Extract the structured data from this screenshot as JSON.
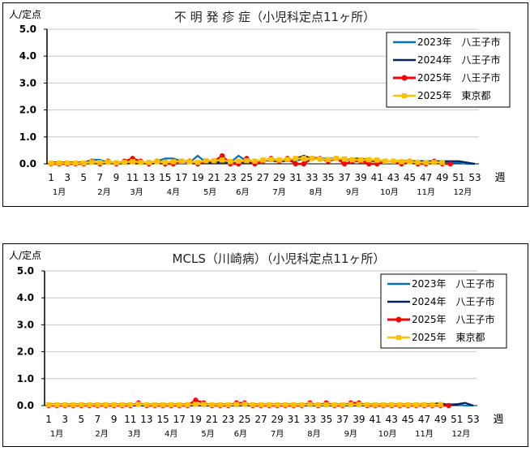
{
  "chart_data": [
    {
      "type": "line",
      "title": "不 明 発 疹 症（小児科定点11ヶ所）",
      "ylabel": "人/定点",
      "xlabel": "週",
      "ylim": [
        0,
        5.0
      ],
      "yticks": [
        "0.0",
        "1.0",
        "2.0",
        "3.0",
        "4.0",
        "5.0"
      ],
      "grid": true,
      "legend_position": "upper-right",
      "x_tick_labels": [
        "1",
        "3",
        "5",
        "7",
        "9",
        "11",
        "13",
        "15",
        "17",
        "19",
        "21",
        "23",
        "25",
        "27",
        "29",
        "31",
        "33",
        "35",
        "37",
        "39",
        "41",
        "43",
        "45",
        "47",
        "49",
        "51",
        "53"
      ],
      "month_labels": [
        {
          "label": "1月",
          "week": 2
        },
        {
          "label": "2月",
          "week": 7.5
        },
        {
          "label": "3月",
          "week": 11.5
        },
        {
          "label": "4月",
          "week": 16
        },
        {
          "label": "5月",
          "week": 20.5
        },
        {
          "label": "6月",
          "week": 24.5
        },
        {
          "label": "7月",
          "week": 29
        },
        {
          "label": "8月",
          "week": 33.5
        },
        {
          "label": "9月",
          "week": 38
        },
        {
          "label": "10月",
          "week": 42.5
        },
        {
          "label": "11月",
          "week": 47
        },
        {
          "label": "12月",
          "week": 51.5
        }
      ],
      "series": [
        {
          "name": "2023年　八王子市",
          "color": "#0070C0",
          "marker": "none",
          "width": 2.2,
          "values": [
            0.05,
            0.05,
            0.05,
            0.05,
            0.05,
            0.15,
            0.15,
            0.05,
            0.05,
            0.05,
            0.05,
            0.05,
            0.05,
            0.1,
            0.2,
            0.2,
            0.1,
            0.05,
            0.3,
            0.05,
            0.05,
            0.1,
            0.05,
            0.3,
            0.1,
            0.1,
            0.1,
            0.15,
            0.15,
            0.1,
            0.1,
            0.2,
            0.25,
            0.2,
            0.2,
            0.2,
            0.15,
            0.2,
            0.2,
            0.15,
            0.15,
            0.1,
            0.1,
            0.1,
            0.1,
            0.1,
            0.1,
            0.05,
            0.05,
            0.05,
            0.05,
            0.0,
            0.0
          ]
        },
        {
          "name": "2024年　八王子市",
          "color": "#002060",
          "marker": "none",
          "width": 2.2,
          "values": [
            0.05,
            0.05,
            0.05,
            0.05,
            0.05,
            0.05,
            0.05,
            0.05,
            0.05,
            0.05,
            0.05,
            0.05,
            0.05,
            0.05,
            0.05,
            0.05,
            0.1,
            0.05,
            0.05,
            0.05,
            0.05,
            0.05,
            0.05,
            0.05,
            0.05,
            0.05,
            0.15,
            0.1,
            0.1,
            0.1,
            0.2,
            0.3,
            0.2,
            0.2,
            0.15,
            0.15,
            0.15,
            0.15,
            0.15,
            0.1,
            0.1,
            0.1,
            0.1,
            0.1,
            0.1,
            0.1,
            0.1,
            0.1,
            0.1,
            0.1,
            0.1,
            0.05,
            0.0
          ]
        },
        {
          "name": "2025年　八王子市",
          "color": "#FF0000",
          "marker": "circle",
          "width": 2.5,
          "values": [
            0.0,
            0.0,
            0.0,
            0.0,
            0.0,
            0.1,
            0.0,
            0.1,
            0.0,
            0.1,
            0.2,
            0.1,
            0.0,
            0.1,
            0.0,
            0.0,
            0.1,
            0.1,
            0.0,
            0.1,
            0.1,
            0.3,
            0.0,
            0.0,
            0.2,
            0.0,
            0.1,
            0.2,
            0.1,
            0.2,
            0.0,
            0.0,
            0.2,
            0.2,
            0.1,
            0.2,
            0.0,
            0.1,
            0.1,
            0.0,
            0.0,
            0.1,
            0.1,
            0.0,
            0.1,
            0.0,
            0.0,
            0.1,
            0.0,
            0.0
          ]
        },
        {
          "name": "2025年　東京都",
          "color": "#FFC000",
          "marker": "square",
          "width": 2.5,
          "values": [
            0.02,
            0.03,
            0.03,
            0.03,
            0.03,
            0.07,
            0.05,
            0.07,
            0.04,
            0.06,
            0.08,
            0.06,
            0.05,
            0.08,
            0.06,
            0.08,
            0.1,
            0.08,
            0.06,
            0.12,
            0.12,
            0.14,
            0.08,
            0.1,
            0.12,
            0.1,
            0.14,
            0.16,
            0.14,
            0.16,
            0.2,
            0.2,
            0.2,
            0.18,
            0.16,
            0.2,
            0.18,
            0.15,
            0.14,
            0.15,
            0.14,
            0.1,
            0.1,
            0.08,
            0.08,
            0.06,
            0.05,
            0.06,
            0.05
          ]
        }
      ]
    },
    {
      "type": "line",
      "title": "MCLS（川崎病）（小児科定点11ヶ所）",
      "ylabel": "人/定点",
      "xlabel": "週",
      "ylim": [
        0,
        5.0
      ],
      "yticks": [
        "0.0",
        "1.0",
        "2.0",
        "3.0",
        "4.0",
        "5.0"
      ],
      "grid": true,
      "legend_position": "upper-right",
      "x_tick_labels": [
        "1",
        "3",
        "5",
        "7",
        "9",
        "11",
        "13",
        "15",
        "17",
        "19",
        "21",
        "23",
        "25",
        "27",
        "29",
        "31",
        "33",
        "35",
        "37",
        "39",
        "41",
        "43",
        "45",
        "47",
        "49",
        "51",
        "53"
      ],
      "month_labels": [
        {
          "label": "1月",
          "week": 2
        },
        {
          "label": "2月",
          "week": 7.5
        },
        {
          "label": "3月",
          "week": 11.5
        },
        {
          "label": "4月",
          "week": 16
        },
        {
          "label": "5月",
          "week": 20.5
        },
        {
          "label": "6月",
          "week": 24.5
        },
        {
          "label": "7月",
          "week": 29
        },
        {
          "label": "8月",
          "week": 33.5
        },
        {
          "label": "9月",
          "week": 38
        },
        {
          "label": "10月",
          "week": 42.5
        },
        {
          "label": "11月",
          "week": 47
        },
        {
          "label": "12月",
          "week": 51.5
        }
      ],
      "series": [
        {
          "name": "2023年　八王子市",
          "color": "#0070C0",
          "marker": "none",
          "width": 2.2,
          "values": [
            0.05,
            0.05,
            0.05,
            0.05,
            0.05,
            0.05,
            0.05,
            0.05,
            0.05,
            0.05,
            0.05,
            0.05,
            0.05,
            0.05,
            0.05,
            0.05,
            0.05,
            0.05,
            0.05,
            0.05,
            0.05,
            0.05,
            0.05,
            0.05,
            0.05,
            0.05,
            0.05,
            0.05,
            0.05,
            0.05,
            0.05,
            0.05,
            0.05,
            0.05,
            0.05,
            0.05,
            0.05,
            0.05,
            0.05,
            0.05,
            0.05,
            0.05,
            0.05,
            0.05,
            0.05,
            0.05,
            0.05,
            0.05,
            0.05,
            0.05,
            0.05,
            0.0,
            0.0
          ]
        },
        {
          "name": "2024年　八王子市",
          "color": "#002060",
          "marker": "none",
          "width": 2.2,
          "values": [
            0.0,
            0.0,
            0.0,
            0.0,
            0.05,
            0.0,
            0.0,
            0.0,
            0.0,
            0.0,
            0.0,
            0.0,
            0.0,
            0.0,
            0.0,
            0.0,
            0.0,
            0.0,
            0.0,
            0.0,
            0.0,
            0.0,
            0.0,
            0.0,
            0.0,
            0.0,
            0.0,
            0.0,
            0.0,
            0.0,
            0.0,
            0.0,
            0.0,
            0.0,
            0.0,
            0.0,
            0.0,
            0.0,
            0.0,
            0.0,
            0.0,
            0.0,
            0.0,
            0.0,
            0.0,
            0.0,
            0.05,
            0.05,
            0.1,
            0.0,
            0.05,
            0.1,
            0.0
          ]
        },
        {
          "name": "2025年　八王子市",
          "color": "#FF0000",
          "marker": "circle",
          "width": 2.5,
          "values": [
            0.0,
            0.0,
            0.0,
            0.0,
            0.0,
            0.0,
            0.0,
            0.0,
            0.0,
            0.0,
            0.0,
            0.1,
            0.0,
            0.0,
            0.0,
            0.0,
            0.0,
            0.0,
            0.2,
            0.1,
            0.0,
            0.0,
            0.0,
            0.1,
            0.1,
            0.0,
            0.0,
            0.0,
            0.0,
            0.0,
            0.0,
            0.0,
            0.1,
            0.0,
            0.1,
            0.0,
            0.0,
            0.1,
            0.1,
            0.0,
            0.0,
            0.0,
            0.0,
            0.0,
            0.0,
            0.0,
            0.0,
            0.0,
            0.0,
            0.0
          ]
        },
        {
          "name": "2025年　東京都",
          "color": "#FFC000",
          "marker": "square",
          "width": 2.5,
          "values": [
            0.03,
            0.03,
            0.03,
            0.03,
            0.03,
            0.03,
            0.03,
            0.03,
            0.03,
            0.03,
            0.03,
            0.05,
            0.03,
            0.03,
            0.03,
            0.03,
            0.03,
            0.03,
            0.05,
            0.04,
            0.03,
            0.03,
            0.03,
            0.04,
            0.05,
            0.03,
            0.03,
            0.03,
            0.03,
            0.03,
            0.03,
            0.03,
            0.04,
            0.03,
            0.03,
            0.03,
            0.03,
            0.04,
            0.04,
            0.03,
            0.03,
            0.03,
            0.03,
            0.03,
            0.03,
            0.03,
            0.03,
            0.03,
            0.03
          ]
        }
      ]
    }
  ]
}
